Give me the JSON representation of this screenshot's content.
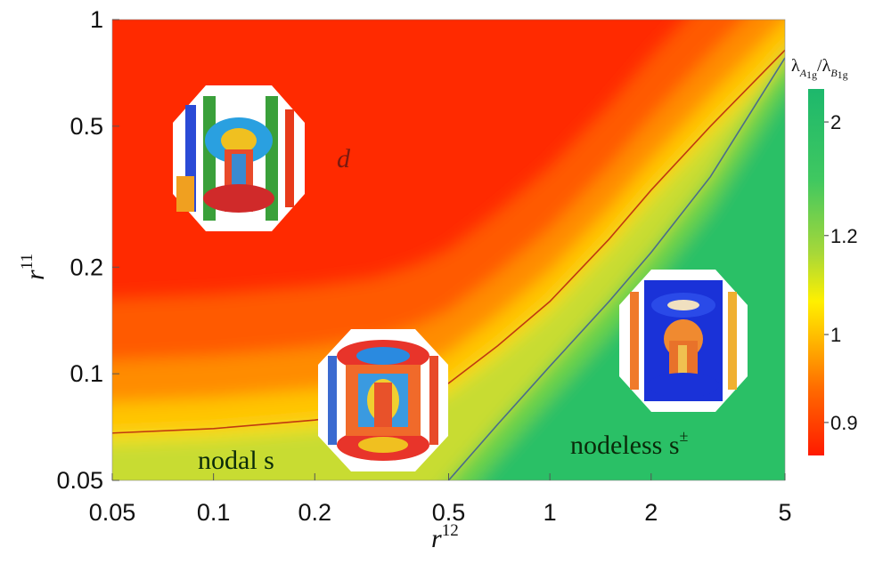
{
  "chart_data": {
    "type": "heatmap",
    "x_scale": "log",
    "y_scale": "log",
    "xlim": [
      0.05,
      5
    ],
    "ylim": [
      0.05,
      1
    ],
    "x_ticks": [
      0.05,
      0.1,
      0.2,
      0.5,
      1,
      2,
      5
    ],
    "x_tick_labels": [
      "0.05",
      "0.1",
      "0.2",
      "0.5",
      "1",
      "2",
      "5"
    ],
    "y_ticks": [
      0.05,
      0.1,
      0.2,
      0.5,
      1
    ],
    "y_tick_labels": [
      "0.05",
      "0.1",
      "0.2",
      "0.5",
      "1"
    ],
    "xlabel": "r",
    "xlabel_sup": "12",
    "ylabel": "r",
    "ylabel_sup": "11",
    "colorbar": {
      "title_main": "λ",
      "title_sub_1": "A",
      "title_sub_1b": "1g",
      "title_sep": "/",
      "title_sub_2": "B",
      "title_sub_2b": "1g",
      "ticks": [
        0.9,
        1,
        1.2,
        2
      ],
      "tick_labels": [
        "0.9",
        "1",
        "1.2",
        "2"
      ],
      "colors": [
        "#ff1a00",
        "#ff8a00",
        "#ffe000",
        "#b6dc2a",
        "#4ccc5a",
        "#1fbd6c"
      ]
    },
    "boundaries": [
      {
        "name": "",
        "color": "#c03a10",
        "points": [
          [
            0.05,
            0.068
          ],
          [
            0.1,
            0.07
          ],
          [
            0.2,
            0.074
          ],
          [
            0.3,
            0.078
          ],
          [
            0.4,
            0.085
          ],
          [
            0.5,
            0.094
          ],
          [
            0.7,
            0.12
          ],
          [
            1.0,
            0.16
          ],
          [
            1.5,
            0.24
          ],
          [
            2.0,
            0.33
          ],
          [
            3.0,
            0.5
          ],
          [
            5.0,
            0.82
          ]
        ]
      },
      {
        "name": "",
        "color": "#4a6c8a",
        "points": [
          [
            0.5,
            0.05
          ],
          [
            0.7,
            0.072
          ],
          [
            1.0,
            0.105
          ],
          [
            1.5,
            0.16
          ],
          [
            2.0,
            0.22
          ],
          [
            3.0,
            0.36
          ],
          [
            5.0,
            0.78
          ]
        ]
      }
    ],
    "regions": [
      {
        "label": "d",
        "label_sup": "",
        "color": "#7a1a10"
      },
      {
        "label": "nodal s",
        "label_sup": "",
        "color": "#0a2a0a"
      },
      {
        "label": "nodeless s",
        "label_sup": "±",
        "color": "#0a2a0a"
      }
    ],
    "insets": [
      {
        "name": "d-wave-fermi-surface-inset",
        "x": 0.15,
        "y": 0.42
      },
      {
        "name": "nodal-s-fermi-surface-inset",
        "x": 0.34,
        "y": 0.082
      },
      {
        "name": "nodeless-s-fermi-surface-inset",
        "x": 2.65,
        "y": 0.11
      }
    ],
    "grid": false,
    "legend": "none"
  }
}
